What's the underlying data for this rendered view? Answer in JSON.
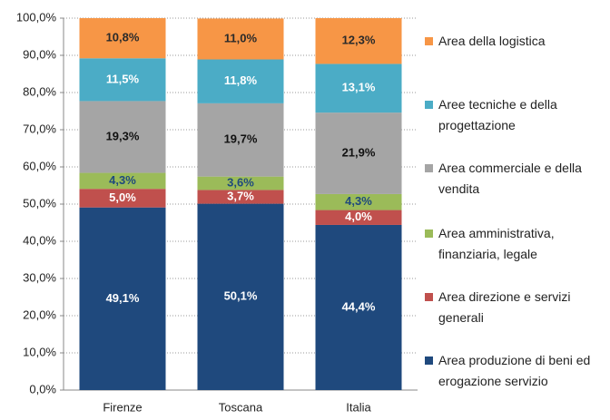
{
  "chart_data": {
    "type": "stacked_bar",
    "categories": [
      "Firenze",
      "Toscana",
      "Italia"
    ],
    "series": [
      {
        "name": "Area produzione di beni ed erogazione servizio",
        "color": "#1f497d",
        "label_color": "#ffffff",
        "values": [
          49.1,
          50.1,
          44.4
        ],
        "value_labels": [
          "49,1%",
          "50,1%",
          "44,4%"
        ]
      },
      {
        "name": "Area direzione e servizi generali",
        "color": "#c0504d",
        "label_color": "#ffffff",
        "values": [
          5.0,
          3.7,
          4.0
        ],
        "value_labels": [
          "5,0%",
          "3,7%",
          "4,0%"
        ]
      },
      {
        "name": "Area amministrativa, finanziaria, legale",
        "color": "#9bbb59",
        "label_color": "#1f497d",
        "values": [
          4.3,
          3.6,
          4.3
        ],
        "value_labels": [
          "4,3%",
          "3,6%",
          "4,3%"
        ]
      },
      {
        "name": "Area commerciale e della vendita",
        "color": "#a5a5a5",
        "label_color": "#111111",
        "values": [
          19.3,
          19.7,
          21.9
        ],
        "value_labels": [
          "19,3%",
          "19,7%",
          "21,9%"
        ]
      },
      {
        "name": "Aree tecniche e della progettazione",
        "color": "#4bacc6",
        "label_color": "#ffffff",
        "values": [
          11.5,
          11.8,
          13.1
        ],
        "value_labels": [
          "11,5%",
          "11,8%",
          "13,1%"
        ]
      },
      {
        "name": "Area della logistica",
        "color": "#f79646",
        "label_color": "#2a2a2a",
        "values": [
          10.8,
          11.0,
          12.3
        ],
        "value_labels": [
          "10,8%",
          "11,0%",
          "12,3%"
        ]
      }
    ],
    "ylim": [
      0,
      100
    ],
    "yticks": [
      {
        "value": 0,
        "label": "0,0%"
      },
      {
        "value": 10,
        "label": "10,0%"
      },
      {
        "value": 20,
        "label": "20,0%"
      },
      {
        "value": 30,
        "label": "30,0%"
      },
      {
        "value": 40,
        "label": "40,0%"
      },
      {
        "value": 50,
        "label": "50,0%"
      },
      {
        "value": 60,
        "label": "60,0%"
      },
      {
        "value": 70,
        "label": "70,0%"
      },
      {
        "value": 80,
        "label": "80,0%"
      },
      {
        "value": 90,
        "label": "90,0%"
      },
      {
        "value": 100,
        "label": "100,0%"
      }
    ],
    "grid": true,
    "legend": "right"
  }
}
